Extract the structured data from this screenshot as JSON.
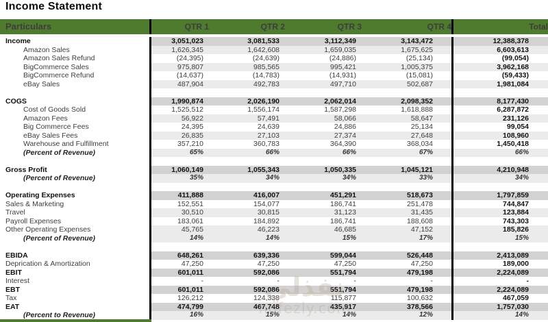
{
  "title": "Income Statement",
  "colors": {
    "header_green": "#4f7b2f",
    "band_dark": "#d2d2d2",
    "band_light": "#ebebeb"
  },
  "watermark": {
    "logo": "نفذلي",
    "url": "nofezly.com"
  },
  "table": {
    "header": {
      "particulars": "Particulars",
      "columns": [
        "QTR 1",
        "QTR 2",
        "QTR 3",
        "QTR 4",
        "Total"
      ]
    },
    "rows": [
      {
        "label": "Income",
        "type": "section",
        "indent": 0,
        "shade": "dark",
        "values": [
          "3,051,023",
          "3,081,533",
          "3,112,349",
          "3,143,472",
          "12,388,378"
        ]
      },
      {
        "label": "Amazon Sales",
        "type": "sub",
        "indent": 1,
        "shade": "light",
        "values": [
          "1,626,345",
          "1,642,608",
          "1,659,035",
          "1,675,625",
          "6,603,613"
        ]
      },
      {
        "label": "Amazon Sales Refund",
        "type": "sub",
        "indent": 1,
        "shade": "none",
        "values": [
          "(24,395)",
          "(24,639)",
          "(24,886)",
          "(25,134)",
          "(99,054)"
        ]
      },
      {
        "label": "BigCommerce Sales",
        "type": "sub",
        "indent": 1,
        "shade": "light",
        "values": [
          "975,807",
          "985,565",
          "995,421",
          "1,005,375",
          "3,962,168"
        ]
      },
      {
        "label": "BigCommerce Refund",
        "type": "sub",
        "indent": 1,
        "shade": "none",
        "values": [
          "(14,637)",
          "(14,783)",
          "(14,931)",
          "(15,081)",
          "(59,433)"
        ]
      },
      {
        "label": "eBay Sales",
        "type": "sub",
        "indent": 1,
        "shade": "light",
        "values": [
          "487,904",
          "492,783",
          "497,710",
          "502,687",
          "1,981,084"
        ]
      },
      {
        "label": "",
        "type": "blank",
        "indent": 0,
        "shade": "none",
        "values": [
          "",
          "",
          "",
          "",
          ""
        ]
      },
      {
        "label": "COGS",
        "type": "section",
        "indent": 0,
        "shade": "dark",
        "values": [
          "1,990,874",
          "2,026,190",
          "2,062,014",
          "2,098,352",
          "8,177,430"
        ]
      },
      {
        "label": "Cost of Goods Sold",
        "type": "sub",
        "indent": 1,
        "shade": "none",
        "values": [
          "1,525,512",
          "1,556,174",
          "1,587,298",
          "1,618,888",
          "6,287,872"
        ]
      },
      {
        "label": "Amazon Fees",
        "type": "sub",
        "indent": 1,
        "shade": "light",
        "values": [
          "56,922",
          "57,491",
          "58,066",
          "58,647",
          "231,126"
        ]
      },
      {
        "label": "Big Commerce Fees",
        "type": "sub",
        "indent": 1,
        "shade": "none",
        "values": [
          "24,395",
          "24,639",
          "24,886",
          "25,134",
          "99,054"
        ]
      },
      {
        "label": "eBay Sales Fees",
        "type": "sub",
        "indent": 1,
        "shade": "light",
        "values": [
          "26,835",
          "27,103",
          "27,374",
          "27,648",
          "108,960"
        ]
      },
      {
        "label": "Warehouse and Fulfillment",
        "type": "sub",
        "indent": 1,
        "shade": "none",
        "values": [
          "357,210",
          "360,783",
          "364,390",
          "368,034",
          "1,450,418"
        ]
      },
      {
        "label": "(Percent of Revenue)",
        "type": "percent",
        "indent": 1,
        "shade": "light",
        "values": [
          "65%",
          "66%",
          "66%",
          "67%",
          "66%"
        ]
      },
      {
        "label": "",
        "type": "blank",
        "indent": 0,
        "shade": "none",
        "values": [
          "",
          "",
          "",
          "",
          ""
        ]
      },
      {
        "label": "Gross Profit",
        "type": "section",
        "indent": 0,
        "shade": "dark",
        "values": [
          "1,060,149",
          "1,055,343",
          "1,050,335",
          "1,045,121",
          "4,210,948"
        ]
      },
      {
        "label": "(Percent of Revenue)",
        "type": "percent",
        "indent": 1,
        "shade": "light",
        "values": [
          "35%",
          "34%",
          "34%",
          "33%",
          "34%"
        ]
      },
      {
        "label": "",
        "type": "blank",
        "indent": 0,
        "shade": "none",
        "values": [
          "",
          "",
          "",
          "",
          ""
        ]
      },
      {
        "label": "Operating Expenses",
        "type": "section",
        "indent": 0,
        "shade": "dark",
        "values": [
          "411,888",
          "416,007",
          "451,291",
          "518,673",
          "1,797,859"
        ]
      },
      {
        "label": "Sales & Marketing",
        "type": "sub",
        "indent": 0,
        "shade": "none",
        "values": [
          "152,551",
          "154,077",
          "186,741",
          "251,478",
          "744,847"
        ]
      },
      {
        "label": "Travel",
        "type": "sub",
        "indent": 0,
        "shade": "light",
        "values": [
          "30,510",
          "30,815",
          "31,123",
          "31,435",
          "123,884"
        ]
      },
      {
        "label": "Payroll Expenses",
        "type": "sub",
        "indent": 0,
        "shade": "none",
        "values": [
          "183,061",
          "184,892",
          "186,741",
          "188,608",
          "743,303"
        ]
      },
      {
        "label": "Other Operating Expenses",
        "type": "sub",
        "indent": 0,
        "shade": "light",
        "values": [
          "45,765",
          "46,223",
          "46,685",
          "47,152",
          "185,826"
        ]
      },
      {
        "label": "(Percent of Revenue)",
        "type": "percent",
        "indent": 1,
        "shade": "light",
        "values": [
          "14%",
          "14%",
          "15%",
          "17%",
          "15%"
        ]
      },
      {
        "label": "",
        "type": "blank",
        "indent": 0,
        "shade": "none",
        "values": [
          "",
          "",
          "",
          "",
          ""
        ]
      },
      {
        "label": "EBIDA",
        "type": "section",
        "indent": 0,
        "shade": "dark",
        "values": [
          "648,261",
          "639,336",
          "599,044",
          "526,448",
          "2,413,089"
        ]
      },
      {
        "label": "Deprication & Amortization",
        "type": "sub",
        "indent": 0,
        "shade": "none",
        "values": [
          "47,250",
          "47,250",
          "47,250",
          "47,250",
          "189,000"
        ]
      },
      {
        "label": "EBIT",
        "type": "section",
        "indent": 0,
        "shade": "dark",
        "values": [
          "601,011",
          "592,086",
          "551,794",
          "479,198",
          "2,224,089"
        ]
      },
      {
        "label": "Interest",
        "type": "sub",
        "indent": 0,
        "shade": "none",
        "values": [
          "-",
          "-",
          "-",
          "-",
          "-"
        ]
      },
      {
        "label": "EBT",
        "type": "section",
        "indent": 0,
        "shade": "dark",
        "values": [
          "601,011",
          "592,086",
          "551,794",
          "479,198",
          "2,224,089"
        ]
      },
      {
        "label": "Tax",
        "type": "sub",
        "indent": 0,
        "shade": "none",
        "values": [
          "126,212",
          "124,338",
          "115,877",
          "100,632",
          "467,059"
        ]
      },
      {
        "label": "EAT",
        "type": "section",
        "indent": 0,
        "shade": "dark",
        "values": [
          "474,799",
          "467,748",
          "435,917",
          "378,566",
          "1,757,030"
        ]
      },
      {
        "label": "(Percent to Revenue)",
        "type": "percent",
        "indent": 1,
        "shade": "light",
        "values": [
          "16%",
          "15%",
          "14%",
          "12%",
          "14%"
        ]
      }
    ]
  }
}
